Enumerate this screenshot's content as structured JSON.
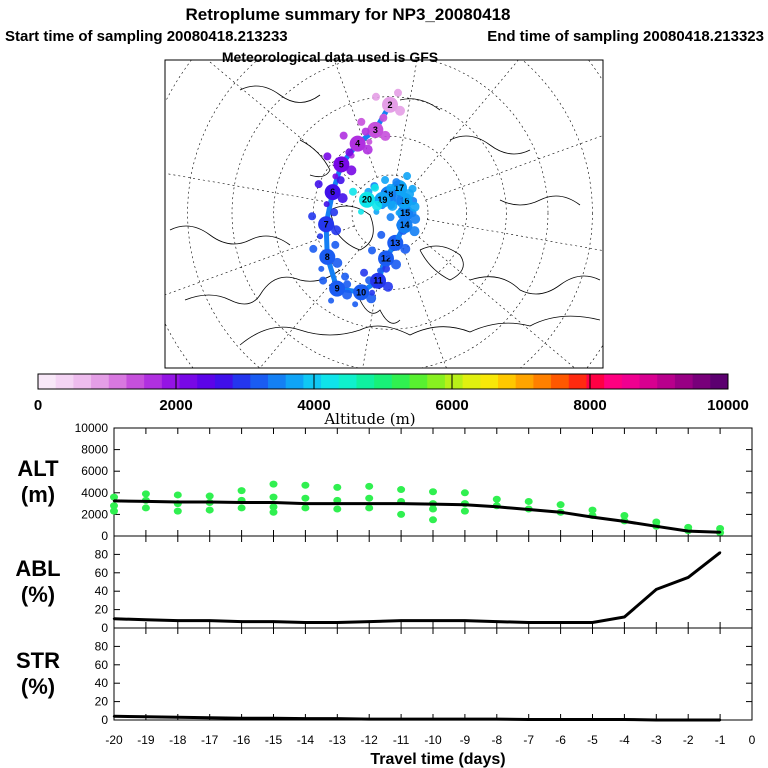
{
  "title": "Retroplume summary for NP3_20080418",
  "start_label": "Start time of sampling 20080418.213233",
  "end_label": "End time of sampling 20080418.213323",
  "met_label": "Meteorological data used is GFS",
  "colorbar": {
    "label": "Altitude (m)",
    "ticks": [
      "0",
      "2000",
      "4000",
      "6000",
      "8000",
      "10000"
    ],
    "colors": [
      "#f8e8f8",
      "#f4d4f4",
      "#eebcee",
      "#e49ee6",
      "#d878e0",
      "#c650dc",
      "#b030e0",
      "#9414e4",
      "#7808e6",
      "#5c04e8",
      "#4010ea",
      "#2436ee",
      "#1a5cf2",
      "#1480f4",
      "#10a4f6",
      "#10c8f4",
      "#10e4ea",
      "#10f0cc",
      "#10f0a0",
      "#18f078",
      "#30f050",
      "#58f030",
      "#88f020",
      "#b8f018",
      "#e0f010",
      "#f8e808",
      "#ffc800",
      "#ffa400",
      "#ff8000",
      "#ff5800",
      "#ff2a10",
      "#ff0044",
      "#ff0080",
      "#f00090",
      "#d80090",
      "#b8008c",
      "#980084",
      "#78007a",
      "#5c0070"
    ]
  },
  "map": {
    "point_labels": [
      "2",
      "3",
      "4",
      "5",
      "6",
      "7",
      "8",
      "9",
      "10",
      "11",
      "12",
      "13",
      "14",
      "15",
      "16",
      "17",
      "18",
      "19",
      "20"
    ],
    "points": [
      {
        "label": "2",
        "lon": -170,
        "lat": 62,
        "alt": 900
      },
      {
        "label": "3",
        "lon": -160,
        "lat": 68,
        "alt": 1300
      },
      {
        "label": "4",
        "lon": -145,
        "lat": 70,
        "alt": 1600
      },
      {
        "label": "5",
        "lon": -125,
        "lat": 72,
        "alt": 2200
      },
      {
        "label": "6",
        "lon": -100,
        "lat": 74,
        "alt": 2600
      },
      {
        "label": "7",
        "lon": -70,
        "lat": 73,
        "alt": 2900
      },
      {
        "label": "8",
        "lon": -45,
        "lat": 70,
        "alt": 3100
      },
      {
        "label": "9",
        "lon": -25,
        "lat": 66,
        "alt": 3200
      },
      {
        "label": "10",
        "lon": -10,
        "lat": 68,
        "alt": 3100
      },
      {
        "label": "11",
        "lon": 0,
        "lat": 72,
        "alt": 3000
      },
      {
        "label": "12",
        "lon": 5,
        "lat": 78,
        "alt": 3100
      },
      {
        "label": "13",
        "lon": 20,
        "lat": 82,
        "alt": 3200
      },
      {
        "label": "14",
        "lon": 60,
        "lat": 85,
        "alt": 3400
      },
      {
        "label": "15",
        "lon": 100,
        "lat": 86,
        "alt": 3500
      },
      {
        "label": "16",
        "lon": 140,
        "lat": 85,
        "alt": 3700
      },
      {
        "label": "17",
        "lon": 170,
        "lat": 83,
        "alt": 3600
      },
      {
        "label": "18",
        "lon": -165,
        "lat": 85,
        "alt": 3500
      },
      {
        "label": "19",
        "lon": -140,
        "lat": 86,
        "alt": 3600
      },
      {
        "label": "20",
        "lon": -110,
        "lat": 83,
        "alt": 4200
      }
    ]
  },
  "chart_data": [
    {
      "type": "line",
      "panel": "ALT",
      "ylabel_top": "ALT",
      "ylabel_bottom": "(m)",
      "ylim": [
        0,
        10000
      ],
      "yticks": [
        "0",
        "2000",
        "4000",
        "6000",
        "8000",
        "10000"
      ],
      "x": [
        -20,
        -19,
        -18,
        -17,
        -16,
        -15,
        -14,
        -13,
        -12,
        -11,
        -10,
        -9,
        -8,
        -7,
        -6,
        -5,
        -4,
        -3,
        -2,
        -1
      ],
      "values": [
        3250,
        3200,
        3150,
        3150,
        3100,
        3100,
        3000,
        3000,
        3000,
        3000,
        2950,
        2900,
        2700,
        2450,
        2200,
        1750,
        1350,
        900,
        450,
        350
      ],
      "scatter": {
        "color": "#30f050",
        "points": [
          [
            -20,
            3600
          ],
          [
            -20,
            2800
          ],
          [
            -20,
            2300
          ],
          [
            -19,
            3900
          ],
          [
            -19,
            3300
          ],
          [
            -19,
            2600
          ],
          [
            -18,
            3800
          ],
          [
            -18,
            3000
          ],
          [
            -18,
            2300
          ],
          [
            -17,
            3700
          ],
          [
            -17,
            3100
          ],
          [
            -17,
            2400
          ],
          [
            -16,
            4200
          ],
          [
            -16,
            3300
          ],
          [
            -16,
            2600
          ],
          [
            -15,
            4800
          ],
          [
            -15,
            3600
          ],
          [
            -15,
            2700
          ],
          [
            -15,
            2200
          ],
          [
            -14,
            4700
          ],
          [
            -14,
            3500
          ],
          [
            -14,
            2600
          ],
          [
            -13,
            4500
          ],
          [
            -13,
            3300
          ],
          [
            -13,
            2500
          ],
          [
            -12,
            4600
          ],
          [
            -12,
            3500
          ],
          [
            -12,
            2600
          ],
          [
            -11,
            4300
          ],
          [
            -11,
            3200
          ],
          [
            -11,
            2000
          ],
          [
            -10,
            4100
          ],
          [
            -10,
            3000
          ],
          [
            -10,
            2500
          ],
          [
            -10,
            1500
          ],
          [
            -9,
            4000
          ],
          [
            -9,
            3000
          ],
          [
            -9,
            2300
          ],
          [
            -8,
            3400
          ],
          [
            -8,
            2800
          ],
          [
            -7,
            3200
          ],
          [
            -7,
            2500
          ],
          [
            -6,
            2900
          ],
          [
            -6,
            2200
          ],
          [
            -5,
            2400
          ],
          [
            -5,
            1900
          ],
          [
            -4,
            1900
          ],
          [
            -4,
            1400
          ],
          [
            -3,
            1300
          ],
          [
            -3,
            900
          ],
          [
            -2,
            800
          ],
          [
            -2,
            500
          ],
          [
            -1,
            700
          ],
          [
            -1,
            300
          ]
        ]
      }
    },
    {
      "type": "line",
      "panel": "ABL",
      "ylabel_top": "ABL",
      "ylabel_bottom": "(%)",
      "ylim": [
        0,
        100
      ],
      "yticks": [
        "0",
        "20",
        "40",
        "60",
        "80"
      ],
      "x": [
        -20,
        -19,
        -18,
        -17,
        -16,
        -15,
        -14,
        -13,
        -12,
        -11,
        -10,
        -9,
        -8,
        -7,
        -6,
        -5,
        -4,
        -3,
        -2,
        -1
      ],
      "values": [
        10,
        9,
        8,
        8,
        7,
        7,
        6,
        6,
        7,
        8,
        8,
        8,
        7,
        6,
        6,
        6,
        12,
        42,
        55,
        82
      ]
    },
    {
      "type": "line",
      "panel": "STR",
      "ylabel_top": "STR",
      "ylabel_bottom": "(%)",
      "ylim": [
        0,
        100
      ],
      "yticks": [
        "0",
        "20",
        "40",
        "60",
        "80"
      ],
      "x": [
        -20,
        -19,
        -18,
        -17,
        -16,
        -15,
        -14,
        -13,
        -12,
        -11,
        -10,
        -9,
        -8,
        -7,
        -6,
        -5,
        -4,
        -3,
        -2,
        -1
      ],
      "values": [
        4,
        3.5,
        3,
        2.5,
        2,
        2,
        1.5,
        1.5,
        1,
        1,
        1,
        1,
        1,
        0.5,
        0.5,
        0.5,
        0.5,
        0,
        0,
        0
      ]
    }
  ],
  "xaxis": {
    "label": "Travel time (days)",
    "xlim": [
      -20,
      0
    ],
    "ticks": [
      "-20",
      "-19",
      "-18",
      "-17",
      "-16",
      "-15",
      "-14",
      "-13",
      "-12",
      "-11",
      "-10",
      "-9",
      "-8",
      "-7",
      "-6",
      "-5",
      "-4",
      "-3",
      "-2",
      "-1",
      "0"
    ]
  }
}
